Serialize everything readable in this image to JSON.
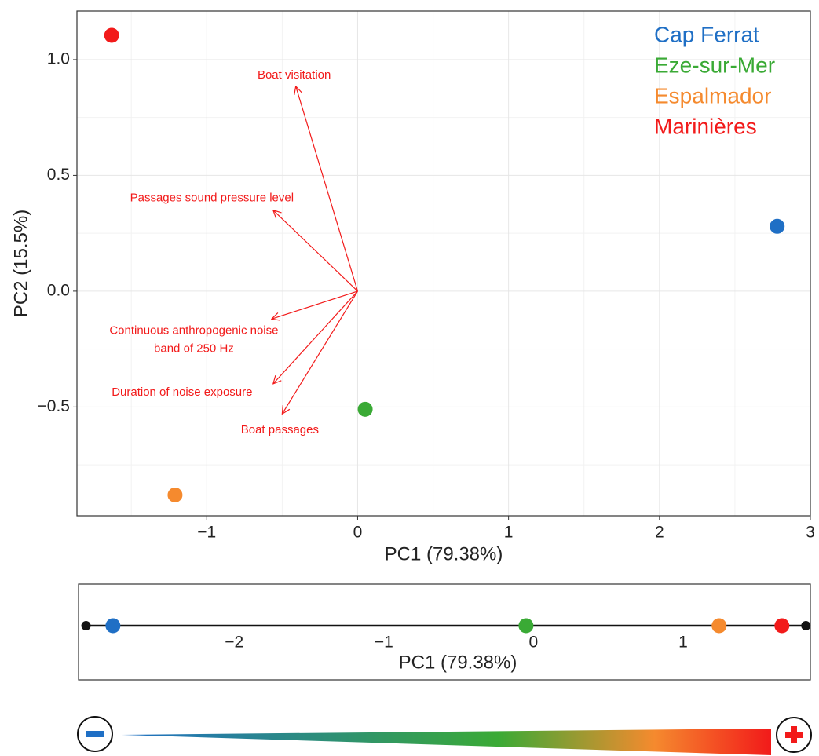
{
  "chart_data": [
    {
      "type": "biplot",
      "xlabel": "PC1 (79.38%)",
      "ylabel": "PC2 (15.5%)",
      "xlim": [
        -1.86,
        3.0
      ],
      "ylim": [
        -0.97,
        1.21
      ],
      "xticks": [
        {
          "value": -1,
          "label": "−1"
        },
        0,
        1,
        2,
        3
      ],
      "yticks": [
        {
          "value": -0.5,
          "label": "−0.5"
        },
        {
          "value": 0,
          "label": "0.0"
        },
        0.5,
        {
          "value": 1,
          "label": "1.0"
        }
      ],
      "grid": true,
      "legend": "top-right",
      "series": [
        {
          "name": "Cap Ferrat",
          "color": "#1f6fc5",
          "x": [
            2.78
          ],
          "y": [
            0.28
          ]
        },
        {
          "name": "Eze-sur-Mer",
          "color": "#3aaa35",
          "x": [
            0.05
          ],
          "y": [
            -0.51
          ]
        },
        {
          "name": "Espalmador",
          "color": "#f58a2e",
          "x": [
            -1.21
          ],
          "y": [
            -0.88
          ]
        },
        {
          "name": "Marinières",
          "color": "#f21a1a",
          "x": [
            -1.63
          ],
          "y": [
            1.105
          ]
        }
      ],
      "arrow_color": "#f21a1a",
      "arrows": [
        {
          "label": "Boat visitation",
          "x": -0.41,
          "y": 0.885
        },
        {
          "label": "Passages sound pressure level",
          "x": -0.56,
          "y": 0.35
        },
        {
          "label": [
            "Continuous anthropogenic noise",
            "band of 250 Hz"
          ],
          "x": -0.57,
          "y": -0.12
        },
        {
          "label": "Duration of noise exposure",
          "x": -0.56,
          "y": -0.4
        },
        {
          "label": "Boat passages",
          "x": -0.5,
          "y": -0.53
        }
      ]
    },
    {
      "type": "strip",
      "xlabel": "PC1 (79.38%)",
      "xlim": [
        -3.04,
        1.85
      ],
      "xticks": [
        {
          "value": -2,
          "label": "−2"
        },
        {
          "value": -1,
          "label": "−1"
        },
        0,
        1
      ],
      "range": [
        -2.99,
        1.82
      ],
      "values": [
        -2.81,
        -0.05,
        1.24,
        1.66
      ],
      "colors": [
        "#1f6fc5",
        "#3aaa35",
        "#f58a2e",
        "#f21a1a"
      ]
    }
  ]
}
